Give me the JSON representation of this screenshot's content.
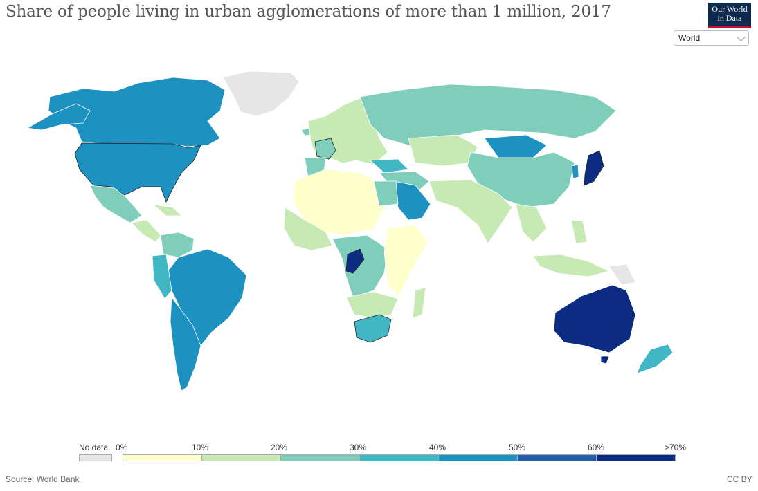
{
  "header": {
    "title": "Share of people living in urban agglomerations of more than 1 million, 2017",
    "logo_line1": "Our World",
    "logo_line2": "in Data",
    "region_select": "World"
  },
  "legend": {
    "no_data_label": "No data",
    "bins": [
      {
        "label_start": "0%",
        "color": "#ffffcc"
      },
      {
        "label_start": "10%",
        "color": "#c7e9b4"
      },
      {
        "label_start": "20%",
        "color": "#7fcdbb"
      },
      {
        "label_start": "30%",
        "color": "#41b6c4"
      },
      {
        "label_start": "40%",
        "color": "#1d91c0"
      },
      {
        "label_start": "50%",
        "color": "#225ea8"
      },
      {
        "label_start": "60%",
        "color": "#0c2c84"
      }
    ],
    "end_label": ">70%",
    "no_data_color": "#e6e6e6"
  },
  "map_colors": {
    "no_data": "#e6e6e6",
    "bin_0_10": "#ffffcc",
    "bin_10_20": "#c7e9b4",
    "bin_20_30": "#7fcdbb",
    "bin_30_40": "#41b6c4",
    "bin_40_50": "#1d91c0",
    "bin_50_60": "#225ea8",
    "bin_60_70": "#0c2c84"
  },
  "footer": {
    "source": "Source: World Bank",
    "license": "CC BY"
  }
}
